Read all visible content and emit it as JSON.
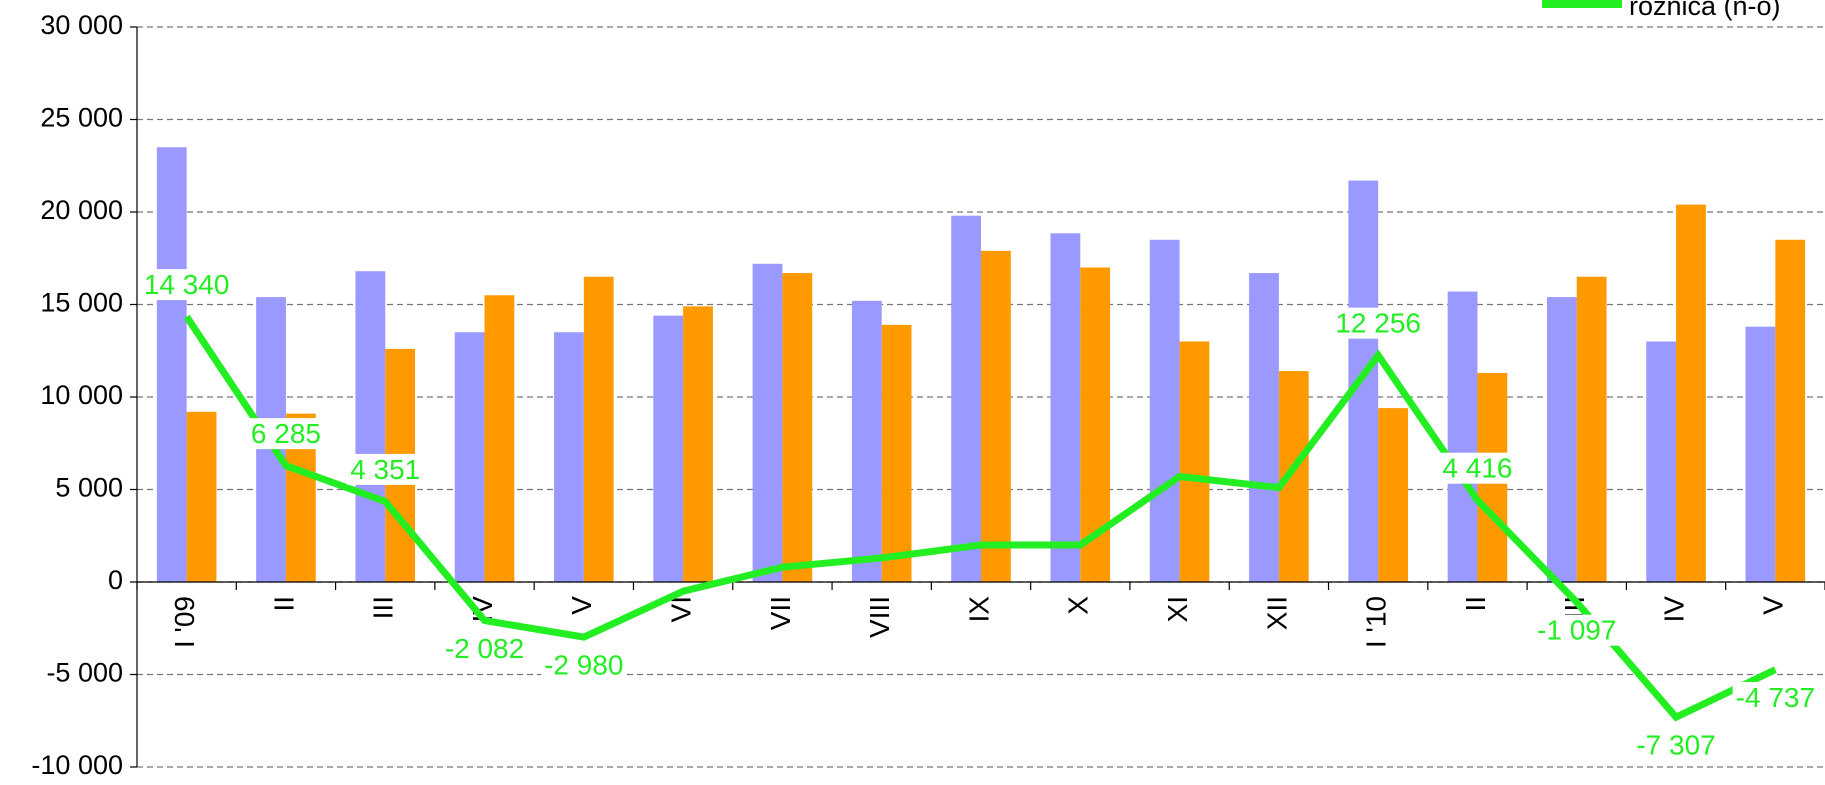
{
  "chart_data": {
    "type": "bar-line",
    "categories": [
      "I '09",
      "II",
      "III",
      "IV",
      "V",
      "VI",
      "VII",
      "VIII",
      "IX",
      "X",
      "XI",
      "XII",
      "I '10",
      "II",
      "III",
      "IV",
      "V"
    ],
    "series": [
      {
        "color": "#9999ff",
        "type": "bar",
        "values": [
          23500,
          15400,
          16800,
          13500,
          13500,
          14400,
          17200,
          15200,
          19800,
          18850,
          18500,
          16700,
          21700,
          15700,
          15400,
          13000,
          13800
        ]
      },
      {
        "color": "#ff9900",
        "type": "bar",
        "values": [
          9200,
          9100,
          12600,
          15500,
          16500,
          14900,
          16700,
          13900,
          17900,
          17000,
          13000,
          11400,
          9400,
          11300,
          16500,
          20400,
          18500
        ]
      },
      {
        "name": "różnica (n-o)",
        "color": "#22ee22",
        "type": "line",
        "values": [
          14340,
          6285,
          4351,
          -2082,
          -2980,
          -500,
          800,
          1300,
          2000,
          2000,
          5700,
          5100,
          12256,
          4416,
          -1097,
          -7307,
          -4737
        ],
        "value_labels": [
          "14 340",
          "6 285",
          "4 351",
          "-2 082",
          "-2 980",
          null,
          null,
          null,
          null,
          null,
          null,
          null,
          "12 256",
          "4 416",
          "-1 097",
          "-7 307",
          "-4 737"
        ]
      }
    ],
    "ylim": [
      -10000,
      30000
    ],
    "yticks": [
      {
        "value": -10000,
        "label": "-10 000"
      },
      {
        "value": -5000,
        "label": "-5 000"
      },
      0,
      {
        "value": 5000,
        "label": "5 000"
      },
      {
        "value": 10000,
        "label": "10 000"
      },
      {
        "value": 15000,
        "label": "15 000"
      },
      {
        "value": 20000,
        "label": "20 000"
      },
      {
        "value": 25000,
        "label": "25 000"
      },
      {
        "value": 30000,
        "label": "30 000"
      }
    ],
    "grid": true,
    "legend": "top-right"
  }
}
